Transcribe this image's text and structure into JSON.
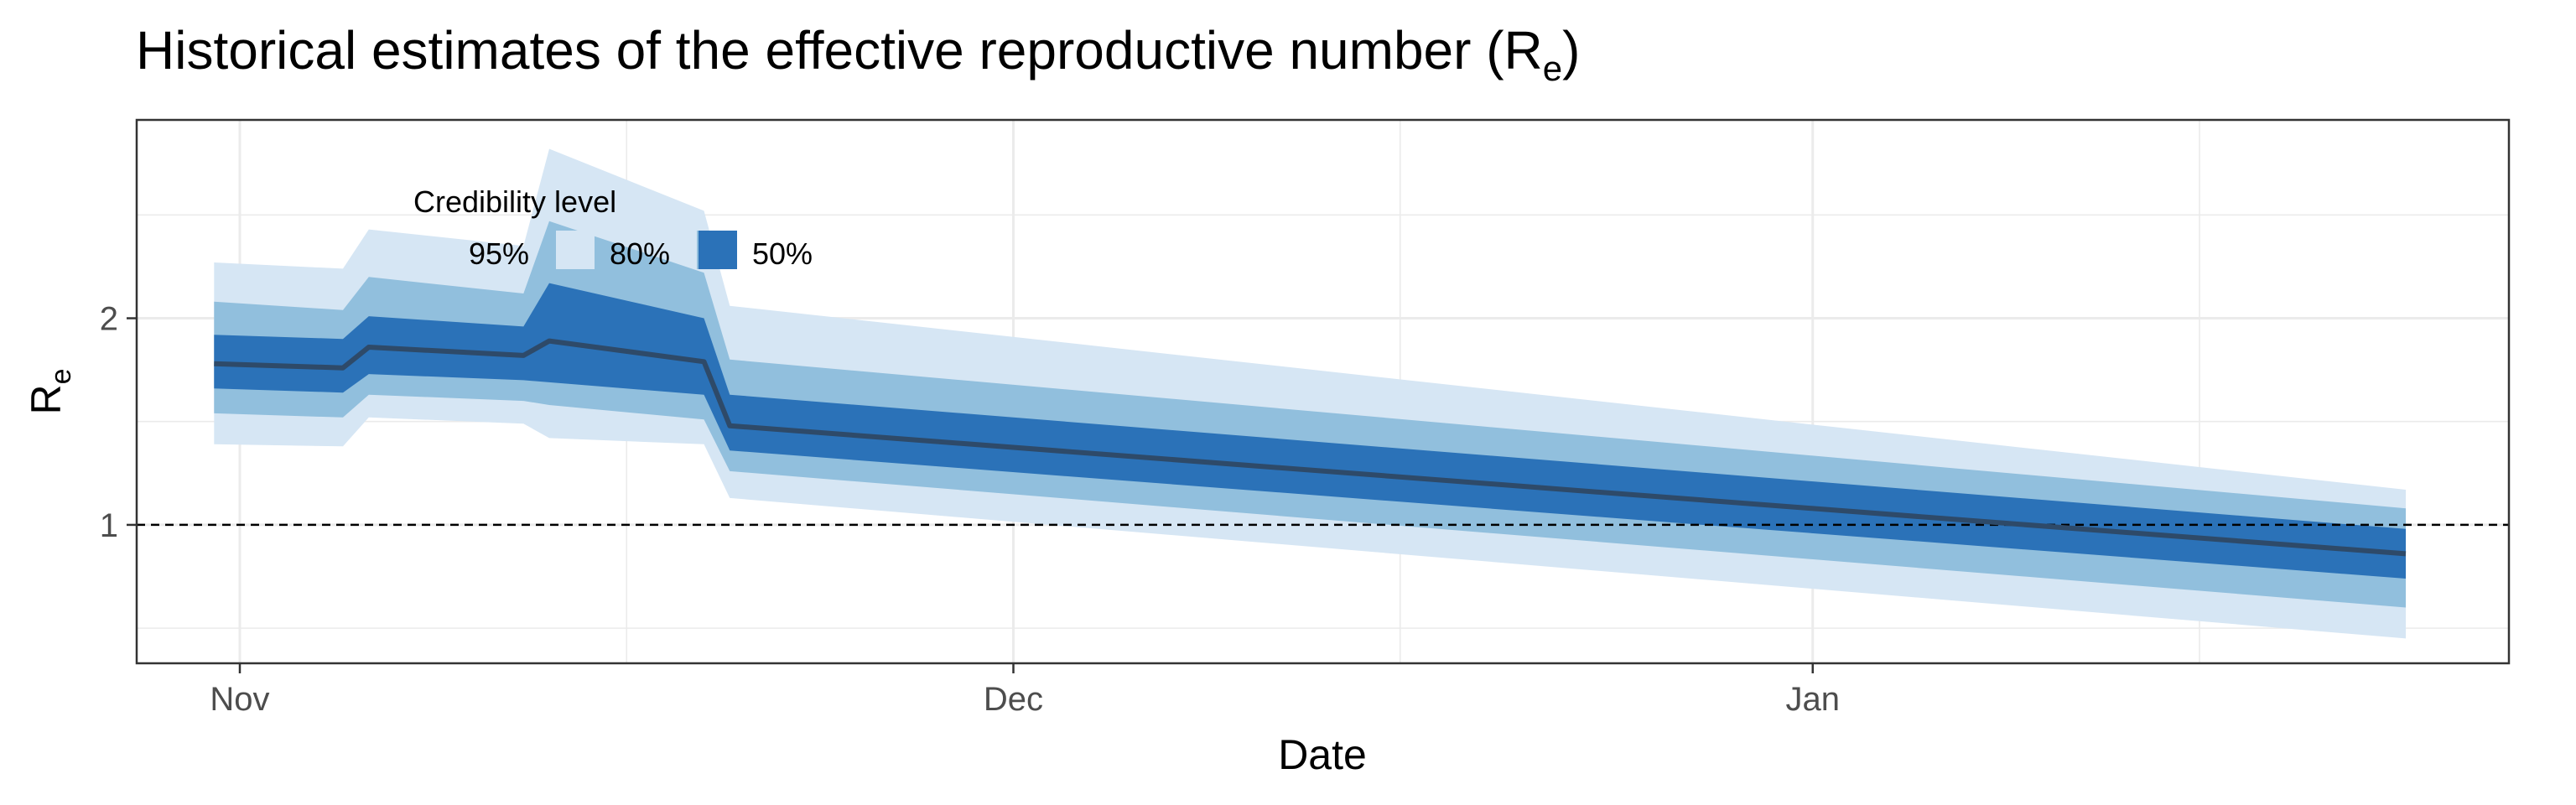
{
  "chart_data": {
    "type": "area",
    "title": "Historical estimates of the effective reproductive number (R",
    "title_subscript": "e",
    "title_suffix": ")",
    "xlabel": "Date",
    "ylabel": "R",
    "ylabel_subscript": "e",
    "x_ticks": [
      {
        "date": "2020-11-01",
        "label": "Nov"
      },
      {
        "date": "2020-12-01",
        "label": "Dec"
      },
      {
        "date": "2021-01-01",
        "label": "Jan"
      }
    ],
    "x_minor_ticks": [
      "2020-11-16",
      "2020-12-16",
      "2021-01-16"
    ],
    "y_ticks": [
      {
        "value": 1,
        "label": "1"
      },
      {
        "value": 2,
        "label": "2"
      }
    ],
    "y_minor_ticks": [
      0.5,
      1.5,
      2.5
    ],
    "xlim": [
      "2020-10-28",
      "2021-01-28"
    ],
    "ylim": [
      0.33,
      2.96
    ],
    "reference_line": {
      "y": 1,
      "style": "dashed"
    },
    "grid": true,
    "legend": {
      "title": "Credibility level",
      "placement": "top-left",
      "entries": [
        {
          "label": "95%",
          "color": "#d6e6f4"
        },
        {
          "label": "80%",
          "color": "#91bfdd"
        },
        {
          "label": "50%",
          "color": "#2b72b8"
        }
      ]
    },
    "colors": {
      "ci95": "#d6e6f4",
      "ci80": "#91bfdd",
      "ci50": "#2b72b8",
      "median": "#2e4a69",
      "panel_border": "#333333"
    },
    "series": {
      "x": [
        "2020-10-31",
        "2020-11-05",
        "2020-11-06",
        "2020-11-12",
        "2020-11-13",
        "2020-11-19",
        "2020-11-20",
        "2021-01-24"
      ],
      "median": [
        1.78,
        1.76,
        1.86,
        1.82,
        1.89,
        1.79,
        1.48,
        0.86
      ],
      "ci50_lower": [
        1.66,
        1.64,
        1.73,
        1.7,
        1.69,
        1.63,
        1.36,
        0.74
      ],
      "ci50_upper": [
        1.92,
        1.9,
        2.01,
        1.96,
        2.17,
        2.0,
        1.63,
        0.98
      ],
      "ci80_lower": [
        1.54,
        1.52,
        1.63,
        1.6,
        1.58,
        1.51,
        1.26,
        0.6
      ],
      "ci80_upper": [
        2.08,
        2.04,
        2.2,
        2.12,
        2.47,
        2.22,
        1.8,
        1.08
      ],
      "ci95_lower": [
        1.39,
        1.38,
        1.52,
        1.49,
        1.42,
        1.39,
        1.13,
        0.45
      ],
      "ci95_upper": [
        2.27,
        2.24,
        2.43,
        2.35,
        2.82,
        2.52,
        2.06,
        1.17
      ]
    }
  }
}
